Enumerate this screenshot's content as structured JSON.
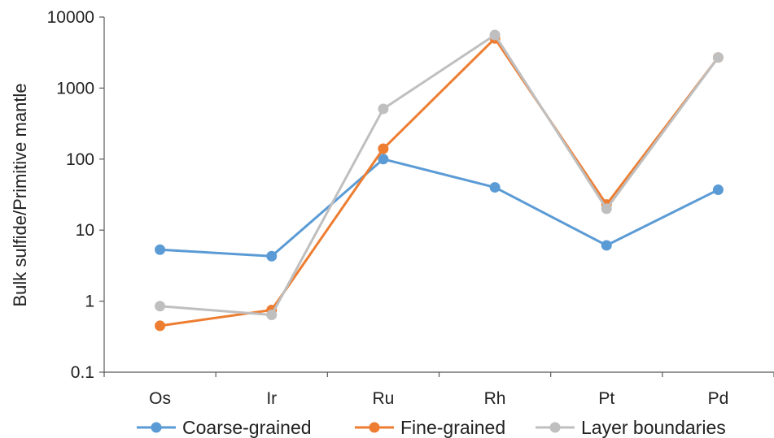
{
  "chart_data": {
    "type": "line",
    "y_scale": "log",
    "categories": [
      "Os",
      "Ir",
      "Ru",
      "Rh",
      "Pt",
      "Pd"
    ],
    "ylabel": "Bulk sulfide/Primitive mantle",
    "xlabel": "",
    "ylim": [
      0.1,
      10000
    ],
    "y_ticks": [
      "0.1",
      "1",
      "10",
      "100",
      "1000",
      "10000"
    ],
    "grid": false,
    "legend_position": "bottom",
    "series": [
      {
        "name": "Coarse-grained",
        "color": "#5b9bd5",
        "values": [
          5.3,
          4.3,
          100,
          40,
          6.1,
          37
        ]
      },
      {
        "name": "Fine-grained",
        "color": "#ed7d31",
        "values": [
          0.45,
          0.75,
          140,
          5000,
          23,
          2700
        ]
      },
      {
        "name": "Layer boundaries",
        "color": "#bfbfbf",
        "values": [
          0.85,
          0.64,
          510,
          5600,
          20,
          2700
        ]
      }
    ]
  }
}
